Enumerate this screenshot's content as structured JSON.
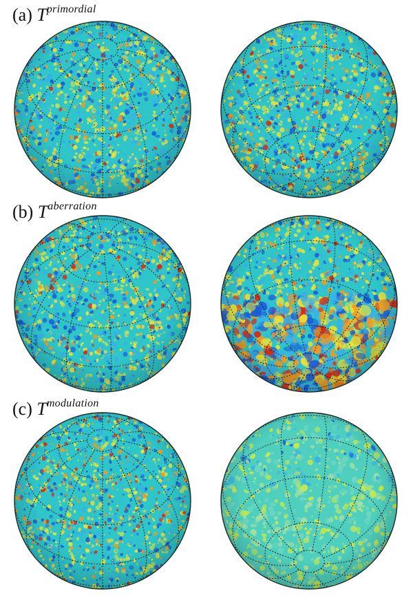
{
  "panels": [
    {
      "tag": "(a)",
      "symbol": "T",
      "superscript": "primordial"
    },
    {
      "tag": "(b)",
      "symbol": "T",
      "superscript": "aberration"
    },
    {
      "tag": "(c)",
      "symbol": "T",
      "superscript": "modulation"
    }
  ],
  "colors": {
    "background": "#2ec6c8",
    "cold": "#1a5bd6",
    "coldLight": "#39b0e8",
    "warm": "#e8e23a",
    "hot": "#f59a1c",
    "hottest": "#d92a12",
    "grid": "#1a1a1a"
  }
}
